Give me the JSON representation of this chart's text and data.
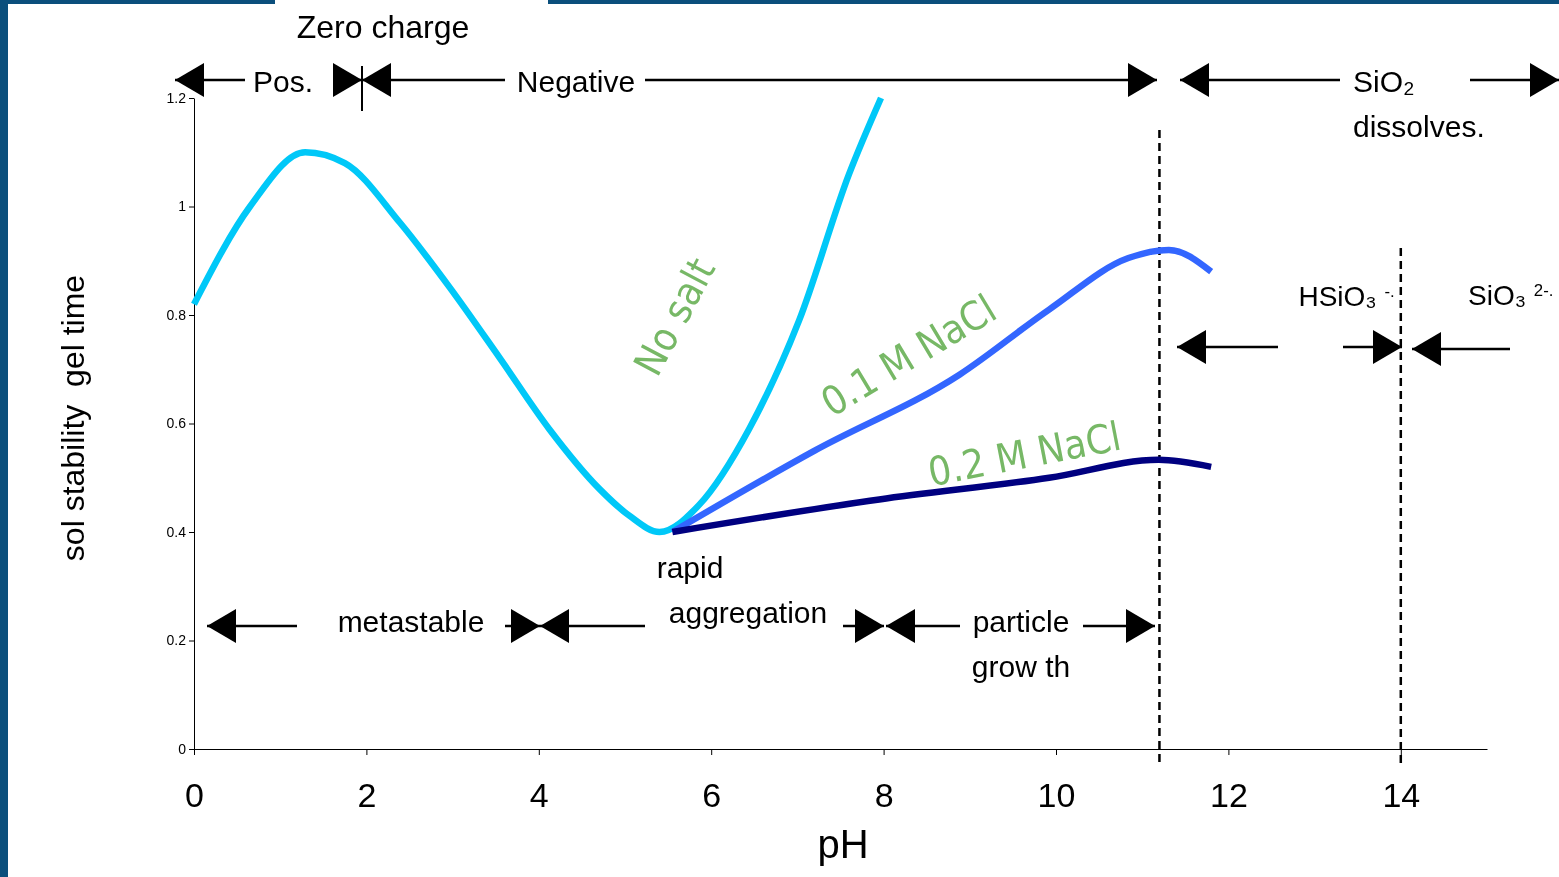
{
  "chart_data": {
    "type": "line",
    "xlabel": "pH",
    "ylabel": "sol stability  gel time",
    "xlim": [
      0,
      15
    ],
    "ylim": [
      0,
      1.2
    ],
    "xticks": [
      0,
      2,
      4,
      6,
      8,
      10,
      12,
      14
    ],
    "yticks": [
      0,
      0.2,
      0.4,
      0.6,
      0.8,
      1,
      1.2
    ],
    "grid": false,
    "legend": false,
    "marker": "none",
    "line_style": "solid",
    "series": [
      {
        "name": "No salt",
        "color": "#00c8f8",
        "x": [
          0,
          0.65,
          1.29,
          1.75,
          2.39,
          2.97,
          3.55,
          4.12,
          4.7,
          5.05,
          5.4,
          5.86,
          6.44,
          7.02,
          7.6,
          7.97
        ],
        "values": [
          0.82,
          1.0,
          1.1,
          1.08,
          0.97,
          0.85,
          0.72,
          0.59,
          0.48,
          0.43,
          0.4,
          0.45,
          0.59,
          0.79,
          1.06,
          1.2
        ]
      },
      {
        "name": "0.1 M NaCl",
        "color": "#3366ff",
        "x": [
          5.55,
          7.2,
          8.88,
          9.92,
          10.84,
          11.31,
          11.8
        ],
        "values": [
          0.4,
          0.55,
          0.69,
          0.81,
          0.905,
          0.92,
          0.88
        ]
      },
      {
        "name": "0.2 M NaCl",
        "color": "#000080",
        "x": [
          5.55,
          7.95,
          9.92,
          11.19,
          11.8
        ],
        "values": [
          0.4,
          0.46,
          0.5,
          0.533,
          0.52
        ]
      }
    ],
    "ref_lines": [
      {
        "axis": "x",
        "value": 11.2,
        "color": "#000000",
        "line_style": "dashed"
      },
      {
        "axis": "x",
        "value": 14,
        "color": "#000000",
        "line_style": "dashed"
      }
    ],
    "annotations": [
      "Zero charge",
      "Pos.",
      "Negative",
      "SiO₂",
      "dissolves.",
      {
        "text": "HSiO₃ $^{-.}$",
        "x": 14,
        "y": 0.74
      },
      "SiO₃ $^{2-.}$",
      "metastable",
      "rapid",
      "aggregation",
      "particle",
      "grow th"
    ]
  }
}
